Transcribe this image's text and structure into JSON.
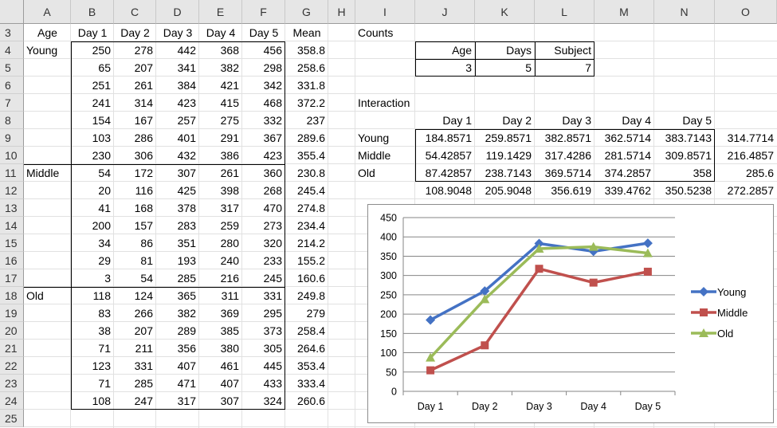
{
  "sheet": {
    "columns": [
      "A",
      "B",
      "C",
      "D",
      "E",
      "F",
      "G",
      "H",
      "I",
      "J",
      "K",
      "L",
      "M",
      "N",
      "O"
    ],
    "rows": [
      "3",
      "4",
      "5",
      "6",
      "7",
      "8",
      "9",
      "10",
      "11",
      "12",
      "13",
      "14",
      "15",
      "16",
      "17",
      "18",
      "19",
      "20",
      "21",
      "22",
      "23",
      "24",
      "25"
    ]
  },
  "data_table": {
    "headers": [
      "Age",
      "Day 1",
      "Day 2",
      "Day 3",
      "Day 4",
      "Day 5",
      "Mean"
    ],
    "group_labels": {
      "young": "Young",
      "middle": "Middle",
      "old": "Old"
    },
    "rows": [
      [
        "250",
        "278",
        "442",
        "368",
        "456",
        "358.8"
      ],
      [
        "65",
        "207",
        "341",
        "382",
        "298",
        "258.6"
      ],
      [
        "251",
        "261",
        "384",
        "421",
        "342",
        "331.8"
      ],
      [
        "241",
        "314",
        "423",
        "415",
        "468",
        "372.2"
      ],
      [
        "154",
        "167",
        "257",
        "275",
        "332",
        "237"
      ],
      [
        "103",
        "286",
        "401",
        "291",
        "367",
        "289.6"
      ],
      [
        "230",
        "306",
        "432",
        "386",
        "423",
        "355.4"
      ],
      [
        "54",
        "172",
        "307",
        "261",
        "360",
        "230.8"
      ],
      [
        "20",
        "116",
        "425",
        "398",
        "268",
        "245.4"
      ],
      [
        "41",
        "168",
        "378",
        "317",
        "470",
        "274.8"
      ],
      [
        "200",
        "157",
        "283",
        "259",
        "273",
        "234.4"
      ],
      [
        "34",
        "86",
        "351",
        "280",
        "320",
        "214.2"
      ],
      [
        "29",
        "81",
        "193",
        "240",
        "233",
        "155.2"
      ],
      [
        "3",
        "54",
        "285",
        "216",
        "245",
        "160.6"
      ],
      [
        "118",
        "124",
        "365",
        "311",
        "331",
        "249.8"
      ],
      [
        "83",
        "266",
        "382",
        "369",
        "295",
        "279"
      ],
      [
        "38",
        "207",
        "289",
        "385",
        "373",
        "258.4"
      ],
      [
        "71",
        "211",
        "356",
        "380",
        "305",
        "264.6"
      ],
      [
        "123",
        "331",
        "407",
        "461",
        "445",
        "353.4"
      ],
      [
        "71",
        "285",
        "471",
        "407",
        "433",
        "333.4"
      ],
      [
        "108",
        "247",
        "317",
        "307",
        "324",
        "260.6"
      ]
    ]
  },
  "counts": {
    "title": "Counts",
    "headers": [
      "Age",
      "Days",
      "Subject"
    ],
    "values": [
      "3",
      "5",
      "7"
    ]
  },
  "interaction": {
    "title": "Interaction",
    "headers": [
      "Day 1",
      "Day 2",
      "Day 3",
      "Day 4",
      "Day 5"
    ],
    "rows": [
      {
        "label": "Young",
        "values": [
          "184.8571",
          "259.8571",
          "382.8571",
          "362.5714",
          "383.7143"
        ],
        "mean": "314.7714"
      },
      {
        "label": "Middle",
        "values": [
          "54.42857",
          "119.1429",
          "317.4286",
          "281.5714",
          "309.8571"
        ],
        "mean": "216.4857"
      },
      {
        "label": "Old",
        "values": [
          "87.42857",
          "238.7143",
          "369.5714",
          "374.2857",
          "358"
        ],
        "mean": "285.6"
      }
    ],
    "totals": [
      "108.9048",
      "205.9048",
      "356.619",
      "339.4762",
      "350.5238"
    ],
    "grand_mean": "272.2857"
  },
  "chart_data": {
    "type": "line",
    "categories": [
      "Day 1",
      "Day 2",
      "Day 3",
      "Day 4",
      "Day 5"
    ],
    "series": [
      {
        "name": "Young",
        "values": [
          184.8571,
          259.8571,
          382.8571,
          362.5714,
          383.7143
        ],
        "color": "#4472C4",
        "marker": "diamond"
      },
      {
        "name": "Middle",
        "values": [
          54.42857,
          119.1429,
          317.4286,
          281.5714,
          309.8571
        ],
        "color": "#C0504D",
        "marker": "square"
      },
      {
        "name": "Old",
        "values": [
          87.42857,
          238.7143,
          369.5714,
          374.2857,
          358
        ],
        "color": "#9BBB59",
        "marker": "triangle"
      }
    ],
    "ylim": [
      0,
      450
    ],
    "yticks": [
      "0",
      "50",
      "100",
      "150",
      "200",
      "250",
      "300",
      "350",
      "400",
      "450"
    ],
    "grid": true,
    "legend": "right"
  }
}
